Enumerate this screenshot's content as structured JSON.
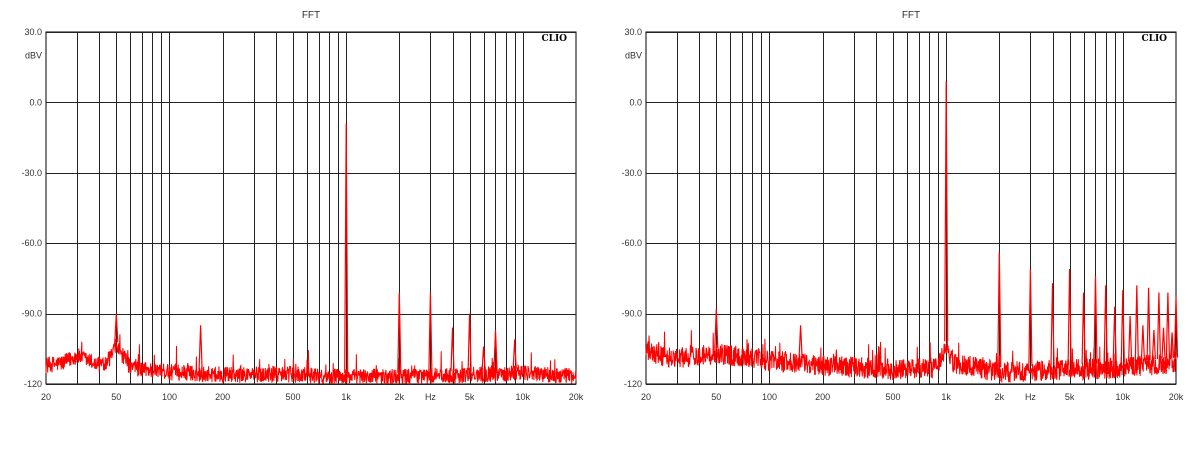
{
  "chart_data": [
    {
      "type": "line",
      "title": "FFT",
      "brand": "CLIO",
      "ylabel": "dBV",
      "xlabel": "Hz",
      "x_scale": "log",
      "xlim": [
        20,
        20000
      ],
      "ylim": [
        -120,
        30
      ],
      "y_ticks": [
        30,
        0,
        -30,
        -60,
        -90,
        -120
      ],
      "y_tick_labels": [
        "30.0",
        "0.0",
        "-30.0",
        "-60.0",
        "-90.0",
        "-120"
      ],
      "x_tick_labels": [
        {
          "x": 20,
          "label": "20"
        },
        {
          "x": 50,
          "label": "50"
        },
        {
          "x": 100,
          "label": "100"
        },
        {
          "x": 200,
          "label": "200"
        },
        {
          "x": 500,
          "label": "500"
        },
        {
          "x": 1000,
          "label": "1k"
        },
        {
          "x": 2000,
          "label": "2k"
        },
        {
          "x": 3000,
          "label": "Hz"
        },
        {
          "x": 5000,
          "label": "5k"
        },
        {
          "x": 10000,
          "label": "10k"
        },
        {
          "x": 20000,
          "label": "20k"
        }
      ],
      "grid": true,
      "line_color": "#ff0000",
      "noise_floor": [
        [
          20,
          -112
        ],
        [
          25,
          -111
        ],
        [
          30,
          -108
        ],
        [
          40,
          -112
        ],
        [
          45,
          -110
        ],
        [
          50,
          -104
        ],
        [
          60,
          -113
        ],
        [
          100,
          -115
        ],
        [
          200,
          -116
        ],
        [
          500,
          -116
        ],
        [
          1000,
          -117
        ],
        [
          2000,
          -117
        ],
        [
          5000,
          -116
        ],
        [
          10000,
          -115
        ],
        [
          20000,
          -117
        ]
      ],
      "noise_amplitude": 3.5,
      "peaks": [
        {
          "x": 50,
          "y": -90
        },
        {
          "x": 150,
          "y": -95
        },
        {
          "x": 1000,
          "y": -9
        },
        {
          "x": 2000,
          "y": -81
        },
        {
          "x": 3000,
          "y": -81
        },
        {
          "x": 4000,
          "y": -96
        },
        {
          "x": 5000,
          "y": -90
        },
        {
          "x": 6000,
          "y": -104
        },
        {
          "x": 7000,
          "y": -97
        },
        {
          "x": 9000,
          "y": -101
        }
      ]
    },
    {
      "type": "line",
      "title": "FFT",
      "brand": "CLIO",
      "ylabel": "dBV",
      "xlabel": "Hz",
      "x_scale": "log",
      "xlim": [
        20,
        20000
      ],
      "ylim": [
        -120,
        30
      ],
      "y_ticks": [
        30,
        0,
        -30,
        -60,
        -90,
        -120
      ],
      "y_tick_labels": [
        "30.0",
        "0.0",
        "-30.0",
        "-60.0",
        "-90.0",
        "-120"
      ],
      "x_tick_labels": [
        {
          "x": 20,
          "label": "20"
        },
        {
          "x": 50,
          "label": "50"
        },
        {
          "x": 100,
          "label": "100"
        },
        {
          "x": 200,
          "label": "200"
        },
        {
          "x": 500,
          "label": "500"
        },
        {
          "x": 1000,
          "label": "1k"
        },
        {
          "x": 2000,
          "label": "2k"
        },
        {
          "x": 3000,
          "label": "Hz"
        },
        {
          "x": 5000,
          "label": "5k"
        },
        {
          "x": 10000,
          "label": "10k"
        },
        {
          "x": 20000,
          "label": "20k"
        }
      ],
      "grid": true,
      "line_color": "#ff0000",
      "noise_floor": [
        [
          20,
          -106
        ],
        [
          25,
          -108
        ],
        [
          30,
          -109
        ],
        [
          50,
          -107
        ],
        [
          100,
          -110
        ],
        [
          200,
          -112
        ],
        [
          500,
          -114
        ],
        [
          900,
          -113
        ],
        [
          1000,
          -104
        ],
        [
          1100,
          -111
        ],
        [
          2000,
          -115
        ],
        [
          5000,
          -114
        ],
        [
          10000,
          -113
        ],
        [
          20000,
          -111
        ]
      ],
      "noise_amplitude": 4.5,
      "peaks": [
        {
          "x": 50,
          "y": -88
        },
        {
          "x": 150,
          "y": -95
        },
        {
          "x": 1000,
          "y": 9
        },
        {
          "x": 2000,
          "y": -64
        },
        {
          "x": 3000,
          "y": -71
        },
        {
          "x": 4000,
          "y": -77
        },
        {
          "x": 5000,
          "y": -71
        },
        {
          "x": 6000,
          "y": -81
        },
        {
          "x": 7000,
          "y": -74
        },
        {
          "x": 8000,
          "y": -78
        },
        {
          "x": 9000,
          "y": -87
        },
        {
          "x": 10000,
          "y": -80
        },
        {
          "x": 11000,
          "y": -91
        },
        {
          "x": 12000,
          "y": -78
        },
        {
          "x": 13000,
          "y": -95
        },
        {
          "x": 14000,
          "y": -79
        },
        {
          "x": 15000,
          "y": -97
        },
        {
          "x": 16000,
          "y": -81
        },
        {
          "x": 17000,
          "y": -96
        },
        {
          "x": 18000,
          "y": -81
        },
        {
          "x": 19000,
          "y": -98
        },
        {
          "x": 20000,
          "y": -83
        }
      ]
    }
  ]
}
